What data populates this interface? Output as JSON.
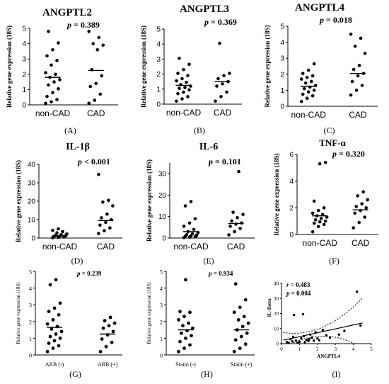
{
  "chart_data": [
    {
      "id": "A",
      "type": "scatter",
      "title": "ANGPTL2",
      "pvalue": "p = 0.389",
      "ylabel": "Relative gene expression (18S)",
      "ylim": [
        0,
        5
      ],
      "yticks": [
        "0",
        "1",
        "2",
        "3",
        "4",
        "5"
      ],
      "categories": [
        "non-CAD",
        "CAD"
      ],
      "means": [
        1.8,
        2.25
      ],
      "panel_label": "(A)",
      "groups": [
        [
          0.1,
          0.2,
          0.35,
          0.55,
          0.8,
          1.05,
          1.3,
          1.5,
          1.65,
          1.8,
          2.0,
          2.1,
          2.6,
          2.9,
          3.2,
          3.6,
          4.05,
          4.8
        ],
        [
          0.1,
          0.3,
          0.7,
          1.2,
          1.4,
          1.9,
          2.3,
          3.6,
          3.9,
          4.0,
          4.4,
          4.8
        ]
      ]
    },
    {
      "id": "B",
      "type": "scatter",
      "title": "ANGPTL3",
      "pvalue": "p = 0.369",
      "ylabel": "Relative gene expression (18S)",
      "ylim": [
        0,
        5
      ],
      "yticks": [
        "0",
        "1",
        "2",
        "3",
        "4",
        "5"
      ],
      "categories": [
        "non-CAD",
        "CAD"
      ],
      "means": [
        1.25,
        1.5
      ],
      "panel_label": "(B)",
      "groups": [
        [
          0.2,
          0.35,
          0.5,
          0.7,
          0.8,
          0.95,
          1.05,
          1.1,
          1.2,
          1.3,
          1.45,
          1.55,
          1.7,
          1.9,
          2.05,
          2.3,
          2.65,
          3.05
        ],
        [
          0.2,
          0.5,
          0.8,
          1.2,
          1.35,
          1.5,
          1.7,
          1.9,
          2.05,
          4.05
        ]
      ]
    },
    {
      "id": "C",
      "type": "scatter",
      "title": "ANGPTL4",
      "pvalue": "p = 0.018",
      "ylabel": "Relative gene expression (18S)",
      "ylim": [
        0,
        5
      ],
      "yticks": [
        "0",
        "1",
        "2",
        "3",
        "4",
        "5"
      ],
      "categories": [
        "non-CAD",
        "CAD"
      ],
      "means": [
        1.25,
        2.05
      ],
      "panel_label": "(C)",
      "groups": [
        [
          0.3,
          0.5,
          0.65,
          0.75,
          0.9,
          1.0,
          1.1,
          1.2,
          1.3,
          1.45,
          1.55,
          1.7,
          1.8,
          1.9,
          2.05,
          2.25,
          2.65
        ],
        [
          0.7,
          1.0,
          1.3,
          1.55,
          1.9,
          2.05,
          2.3,
          2.55,
          3.3,
          3.75,
          4.25,
          4.5
        ]
      ]
    },
    {
      "id": "D",
      "type": "scatter",
      "title": "IL-1β",
      "pvalue": "p < 0.001",
      "ylabel": "Relative gene expression (18S)",
      "ylim": [
        0,
        40
      ],
      "yticks": [
        "0",
        "10",
        "20",
        "30",
        "40"
      ],
      "categories": [
        "non-CAD",
        "CAD"
      ],
      "means": [
        1.2,
        9.5
      ],
      "panel_label": "(D)",
      "groups": [
        [
          0.2,
          0.4,
          0.6,
          0.8,
          1.0,
          1.2,
          1.5,
          1.8,
          2.2,
          2.8,
          3.5,
          4.2,
          5.0
        ],
        [
          2.5,
          4.0,
          5.5,
          7.0,
          8.5,
          10.0,
          11.0,
          13.0,
          17.5,
          19.5,
          20.5,
          34.5
        ]
      ]
    },
    {
      "id": "E",
      "type": "scatter",
      "title": "IL-6",
      "pvalue": "p = 0.101",
      "ylabel": "Relative gene expression (18S)",
      "ylim": [
        0,
        35
      ],
      "yticks": [
        "0",
        "10",
        "20",
        "30"
      ],
      "categories": [
        "non-CAD",
        "CAD"
      ],
      "means": [
        3.0,
        6.8
      ],
      "panel_label": "(E)",
      "groups": [
        [
          0.2,
          0.4,
          0.6,
          0.8,
          1.0,
          1.3,
          1.6,
          2.0,
          2.5,
          3.0,
          4.0,
          5.5,
          7.0,
          9.0,
          15.0,
          17.0
        ],
        [
          1.5,
          3.0,
          4.5,
          5.5,
          6.5,
          7.0,
          8.0,
          9.5,
          11.0,
          12.0,
          31.0
        ]
      ]
    },
    {
      "id": "F",
      "type": "scatter",
      "title": "TNF-α",
      "pvalue": "p = 0.320",
      "ylabel": "Relative gene expression (18S)",
      "ylim": [
        0,
        6
      ],
      "yticks": [
        "0",
        "2",
        "4",
        "6"
      ],
      "categories": [
        "non-CAD",
        "CAD"
      ],
      "means": [
        1.4,
        1.85
      ],
      "panel_label": "(F)",
      "groups": [
        [
          0.2,
          0.6,
          0.75,
          0.85,
          0.95,
          1.0,
          1.1,
          1.2,
          1.3,
          1.4,
          1.5,
          1.6,
          1.8,
          2.0,
          2.5,
          5.3,
          5.4
        ],
        [
          0.5,
          0.9,
          1.3,
          1.6,
          1.8,
          2.0,
          2.1,
          2.3,
          2.6,
          2.9,
          3.2
        ]
      ]
    },
    {
      "id": "G",
      "type": "scatter",
      "title": "",
      "pvalue": "p = 0.239",
      "ylabel": "Relative gene expression (18S)",
      "ylim": [
        0,
        5
      ],
      "yticks": [
        "0",
        "1",
        "2",
        "3",
        "4",
        "5"
      ],
      "categories": [
        "ARB (-)",
        "ARB (+)"
      ],
      "means": [
        1.65,
        1.25
      ],
      "panel_label": "(G)",
      "groups": [
        [
          0.2,
          0.4,
          0.55,
          0.7,
          0.85,
          1.0,
          1.1,
          1.25,
          1.4,
          1.55,
          1.7,
          1.85,
          2.1,
          2.4,
          2.6,
          2.8,
          3.1,
          4.2,
          4.5
        ],
        [
          0.2,
          0.5,
          0.75,
          0.95,
          1.2,
          1.4,
          1.6,
          1.75,
          1.9,
          2.05,
          2.25
        ]
      ]
    },
    {
      "id": "H",
      "type": "scatter",
      "title": "",
      "pvalue": "p = 0.934",
      "ylabel": "Relative gene expression (18S)",
      "ylim": [
        0,
        5
      ],
      "yticks": [
        "0",
        "1",
        "2",
        "3",
        "4",
        "5"
      ],
      "categories": [
        "Statin (-)",
        "Statin (+)"
      ],
      "means": [
        1.5,
        1.5
      ],
      "panel_label": "(H)",
      "groups": [
        [
          0.2,
          0.4,
          0.6,
          0.8,
          1.0,
          1.15,
          1.3,
          1.45,
          1.6,
          1.75,
          1.9,
          2.1,
          2.3,
          2.55,
          2.6,
          4.5
        ],
        [
          0.2,
          0.4,
          0.65,
          0.9,
          1.1,
          1.3,
          1.5,
          1.7,
          1.9,
          2.1,
          2.3,
          2.55,
          2.85,
          3.3,
          4.25
        ]
      ]
    },
    {
      "id": "I",
      "type": "scatter",
      "title": "",
      "panel_label": "(I)",
      "r_text": "r = 0.483",
      "p_text": "p = 0.004",
      "xlabel": "ANGPTL4",
      "ylabel": "IL-1beta",
      "xlim": [
        0,
        5
      ],
      "ylim": [
        0,
        40
      ],
      "xticks": [
        "0",
        "1",
        "2",
        "3",
        "4",
        "5"
      ],
      "yticks": [
        "0",
        "10",
        "20",
        "30",
        "40"
      ],
      "fit": {
        "slope": 2.6,
        "intercept": 2.0
      },
      "points": [
        [
          0.3,
          1.0
        ],
        [
          0.4,
          0.5
        ],
        [
          0.5,
          3.0
        ],
        [
          0.6,
          1.5
        ],
        [
          0.65,
          4.5
        ],
        [
          0.7,
          19.0
        ],
        [
          0.8,
          2.0
        ],
        [
          0.9,
          0.5
        ],
        [
          1.0,
          1.2
        ],
        [
          1.1,
          3.5
        ],
        [
          1.2,
          19.5
        ],
        [
          1.25,
          5.0
        ],
        [
          1.3,
          1.0
        ],
        [
          1.4,
          2.5
        ],
        [
          1.5,
          1.8
        ],
        [
          1.55,
          3.0
        ],
        [
          1.6,
          6.0
        ],
        [
          1.7,
          4.0
        ],
        [
          1.8,
          2.0
        ],
        [
          1.9,
          7.5
        ],
        [
          2.0,
          3.5
        ],
        [
          2.1,
          2.2
        ],
        [
          2.3,
          9.0
        ],
        [
          2.5,
          5.5
        ],
        [
          2.7,
          4.0
        ],
        [
          3.2,
          6.0
        ],
        [
          3.5,
          8.5
        ],
        [
          4.2,
          34.5
        ],
        [
          4.4,
          12.0
        ]
      ]
    }
  ]
}
